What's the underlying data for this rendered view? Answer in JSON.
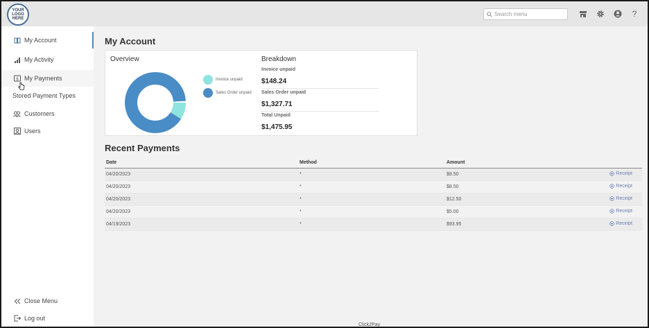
{
  "logo": {
    "lines": [
      "YOUR",
      "LOGO",
      "HERE"
    ]
  },
  "topbar": {
    "search_placeholder": "Search menu",
    "icons": [
      "store-icon",
      "gear-icon",
      "user-icon",
      "help-icon"
    ],
    "help_glyph": "?"
  },
  "sidebar": {
    "items": [
      {
        "label": "My Account",
        "icon": "book-icon"
      },
      {
        "label": "My Activity",
        "icon": "bar-chart-icon"
      },
      {
        "label": "My Payments",
        "icon": "payment-icon"
      },
      {
        "label": "Stored Payment Types",
        "icon": "card-icon"
      },
      {
        "label": "Customers",
        "icon": "users-icon"
      },
      {
        "label": "Users",
        "icon": "user-card-icon"
      }
    ],
    "close_menu": "Close Menu",
    "logout": "Log out"
  },
  "main": {
    "title": "My Account",
    "overview": {
      "heading": "Overview",
      "legend": [
        {
          "label": "Invoice unpaid",
          "color": "#8fe3e0"
        },
        {
          "label": "Sales Order unpaid",
          "color": "#4a8cc6"
        }
      ]
    },
    "breakdown": {
      "heading": "Breakdown",
      "items": [
        {
          "label": "Invoice unpaid",
          "value": "$148.24"
        },
        {
          "label": "Sales Order unpaid",
          "value": "$1,327.71"
        },
        {
          "label": "Total Unpaid",
          "value": "$1,475.95"
        }
      ]
    },
    "recent_payments": {
      "title": "Recent Payments",
      "columns": [
        "Date",
        "Method",
        "Amount"
      ],
      "rows": [
        {
          "date": "04/20/2023",
          "method": "*",
          "amount": "$8.50",
          "receipt": "Receipt"
        },
        {
          "date": "04/20/2023",
          "method": "*",
          "amount": "$8.50",
          "receipt": "Receipt"
        },
        {
          "date": "04/20/2023",
          "method": "*",
          "amount": "$12.50",
          "receipt": "Receipt"
        },
        {
          "date": "04/20/2023",
          "method": "*",
          "amount": "$5.00",
          "receipt": "Receipt"
        },
        {
          "date": "04/19/2023",
          "method": "*",
          "amount": "$93.95",
          "receipt": "Receipt"
        }
      ]
    }
  },
  "footer": "Click2Pay",
  "chart_data": {
    "type": "pie",
    "categories": [
      "Invoice unpaid",
      "Sales Order unpaid"
    ],
    "values": [
      148.24,
      1327.71
    ],
    "colors": [
      "#8fe3e0",
      "#4a8cc6"
    ]
  }
}
